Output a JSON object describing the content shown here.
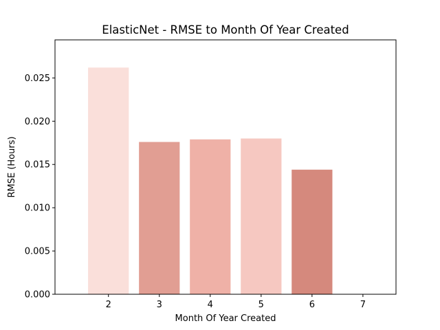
{
  "chart_data": {
    "type": "bar",
    "title": "ElasticNet - RMSE to Month Of Year Created",
    "xlabel": "Month Of Year Created",
    "ylabel": "RMSE (Hours)",
    "categories": [
      "2",
      "3",
      "4",
      "5",
      "6",
      "7"
    ],
    "values": [
      0.0262,
      0.0176,
      0.0179,
      0.018,
      0.0144,
      0
    ],
    "colors": [
      "#fadfda",
      "#e19e93",
      "#efb1a7",
      "#f6c8c1",
      "#d5897d",
      "#ffffff"
    ],
    "ylim": [
      0,
      0.0294
    ],
    "xlim": [
      0.95,
      7.65
    ],
    "yticks": [
      0.0,
      0.005,
      0.01,
      0.015,
      0.02,
      0.025
    ],
    "ytick_labels": [
      "0.000",
      "0.005",
      "0.010",
      "0.015",
      "0.020",
      "0.025"
    ],
    "xticks": [
      2,
      3,
      4,
      5,
      6,
      7
    ],
    "xtick_labels": [
      "2",
      "3",
      "4",
      "5",
      "6",
      "7"
    ],
    "grid": false,
    "legend": "none"
  }
}
